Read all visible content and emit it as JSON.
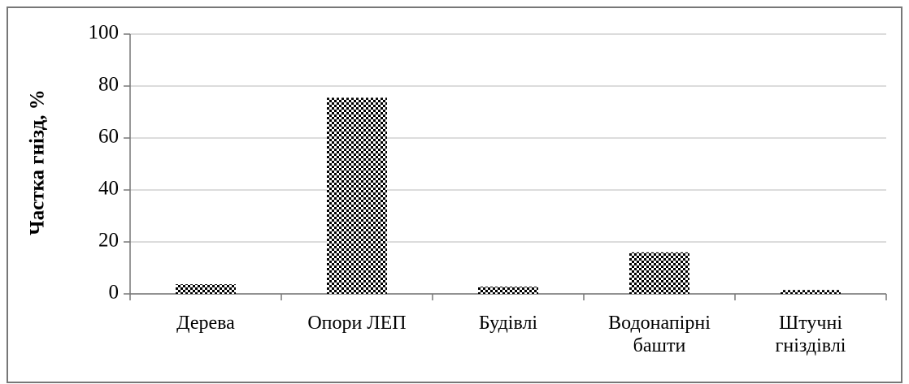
{
  "chart_data": {
    "type": "bar",
    "y_label": "Частка гнізд, %",
    "categories": [
      "Дерева",
      "Опори ЛЕП",
      "Будівлі",
      "Водонапірні башти",
      "Штучні гніздівлі"
    ],
    "values": [
      3.7,
      75.5,
      2.8,
      16,
      1.5
    ],
    "color": "#000000",
    "ylim": [
      0,
      100
    ],
    "yticks": [
      0,
      20,
      40,
      60,
      80,
      100
    ],
    "grid": true
  }
}
